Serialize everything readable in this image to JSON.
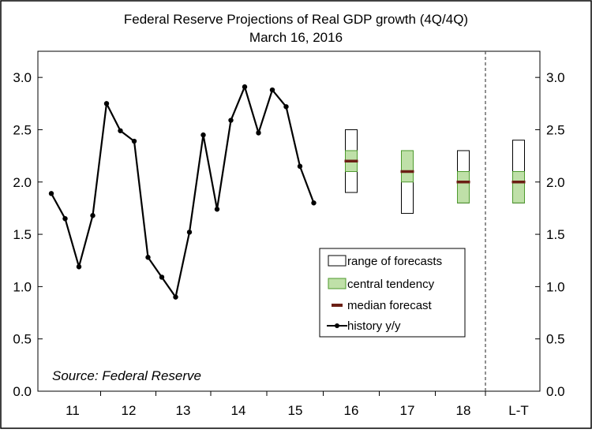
{
  "chart_data": {
    "type": "line",
    "title": "Federal Reserve Projections of Real GDP growth (4Q/4Q)",
    "subtitle": "March 16, 2016",
    "source_note": "Source: Federal Reserve",
    "ylim": [
      0,
      3.25
    ],
    "y_ticks": [
      "0.0",
      "0.5",
      "1.0",
      "1.5",
      "2.0",
      "2.5",
      "3.0"
    ],
    "y_tick_values": [
      0,
      0.5,
      1.0,
      1.5,
      2.0,
      2.5,
      3.0
    ],
    "x_categories": [
      "11",
      "12",
      "13",
      "14",
      "15",
      "16",
      "17",
      "18",
      "L-T"
    ],
    "history": {
      "name": "history y/y",
      "values": [
        1.89,
        1.65,
        1.19,
        1.68,
        2.75,
        2.49,
        2.39,
        1.28,
        1.09,
        0.9,
        1.52,
        2.45,
        1.74,
        2.59,
        2.91,
        2.47,
        2.88,
        2.72,
        2.15,
        1.8
      ]
    },
    "projections": [
      {
        "label": "16",
        "range": [
          1.9,
          2.5
        ],
        "central_tendency": [
          2.1,
          2.3
        ],
        "median": 2.2
      },
      {
        "label": "17",
        "range": [
          1.7,
          2.3
        ],
        "central_tendency": [
          2.0,
          2.3
        ],
        "median": 2.1
      },
      {
        "label": "18",
        "range": [
          1.8,
          2.3
        ],
        "central_tendency": [
          1.8,
          2.1
        ],
        "median": 2.0
      },
      {
        "label": "L-T",
        "range": [
          1.8,
          2.4
        ],
        "central_tendency": [
          1.8,
          2.1
        ],
        "median": 2.0
      }
    ],
    "legend": [
      {
        "key": "range",
        "label": "range of forecasts"
      },
      {
        "key": "central",
        "label": "central tendency"
      },
      {
        "key": "median",
        "label": "median forecast"
      },
      {
        "key": "history",
        "label": "history y/y"
      }
    ],
    "legend_position": "lower-right",
    "colors": {
      "line": "#000000",
      "central_fill": "#bfe0a8",
      "central_stroke": "#4e9a2e",
      "median": "#6b1f14"
    },
    "grid": false
  }
}
